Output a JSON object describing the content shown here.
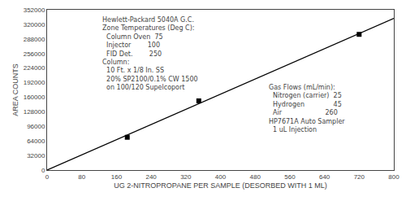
{
  "chart_data": {
    "type": "scatter",
    "xlabel": "UG 2-NITROPROPANE PER SAMPLE (DESORBED WITH 1 ML)",
    "ylabel": "AREA COUNTS",
    "xlim": [
      0,
      800
    ],
    "ylim": [
      0,
      352000
    ],
    "xticks": [
      0,
      80,
      160,
      240,
      320,
      400,
      480,
      560,
      640,
      720,
      800
    ],
    "yticks": [
      0,
      32000,
      64000,
      96000,
      128000,
      160000,
      192000,
      224000,
      256000,
      288000,
      320000,
      352000
    ],
    "grid": false,
    "series": [
      {
        "type": "line",
        "color": "#000000",
        "line_style": "solid",
        "x": [
          0,
          800
        ],
        "values": [
          0,
          333070.1722
        ]
      },
      {
        "type": "scatter",
        "color": "#000000",
        "marker": "square",
        "x": [
          185,
          350,
          720
        ],
        "values": [
          72000,
          152000,
          298000
        ]
      }
    ],
    "annotations": [
      "Hewlett-Packard 5040A G.C.\nZone Temperatures (Deg C):\n  Column Oven  75\n  Injector        100\n  FID Det.        250\nColumn:\n  10 Ft. x 1/8 In. SS\n  20% SP2100/0.1% CW 1500\n  on 100/120 Supelcoport",
      "Gas Flows (mL/min):\n  Nitrogen (carrier)  25\n  Hydrogen              45\n  Air                     260\nHP7671A Auto Sampler\n  1 uL Injection"
    ]
  }
}
